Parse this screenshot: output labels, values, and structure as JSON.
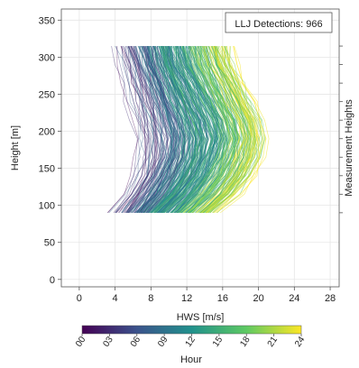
{
  "chart_data": {
    "type": "line",
    "annotation": "LLJ Detections: 966",
    "xlabel": "HWS [m/s]",
    "ylabel": "Height [m]",
    "right_label": "Measurement Heights",
    "xlim": [
      -2,
      29
    ],
    "ylim": [
      -10,
      365
    ],
    "xticks": [
      0,
      4,
      8,
      12,
      16,
      20,
      24,
      28
    ],
    "yticks": [
      0,
      50,
      100,
      150,
      200,
      250,
      300,
      350
    ],
    "grid": true,
    "profile_heights": [
      90,
      115,
      140,
      165,
      190,
      215,
      240,
      265,
      290,
      315
    ],
    "measurement_heights": [
      90,
      115,
      140,
      165,
      190,
      215,
      240,
      265,
      290,
      315
    ],
    "detections": 966,
    "colorbar": {
      "label": "Hour",
      "colormap": "viridis",
      "ticks": [
        "00",
        "03",
        "06",
        "09",
        "12",
        "15",
        "18",
        "21",
        "24"
      ],
      "range": [
        0,
        24
      ],
      "colors": [
        "#440154",
        "#3b528b",
        "#21918c",
        "#5ec962",
        "#fde725"
      ]
    },
    "profile_groups": [
      {
        "name_hint": "low",
        "speeds_at_heights": [
          4,
          5.5,
          6.5,
          7,
          7,
          6.5,
          6,
          5.5,
          5,
          4.5
        ]
      },
      {
        "name_hint": "mid",
        "speeds_at_heights": [
          10,
          12,
          13.5,
          14.5,
          15,
          14.5,
          13.5,
          12.5,
          11.5,
          11
        ]
      },
      {
        "name_hint": "high",
        "speeds_at_heights": [
          15,
          17.5,
          19,
          20,
          20.5,
          20,
          19,
          18,
          17,
          16.5
        ]
      }
    ]
  }
}
